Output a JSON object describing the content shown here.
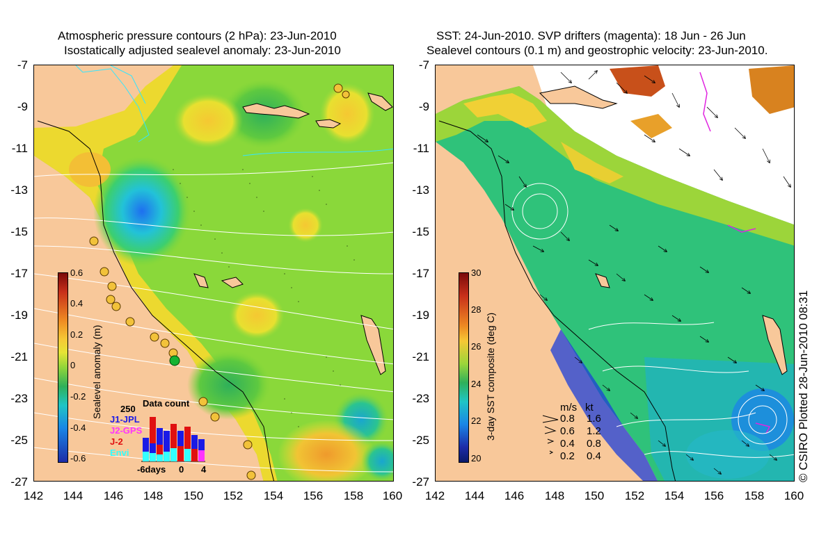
{
  "left_panel": {
    "title_line1": "Atmospheric pressure contours (2 hPa): 23-Jun-2010",
    "title_line2": "Isostatically adjusted sealevel anomaly: 23-Jun-2010",
    "y_ticks": [
      "-7",
      "-9",
      "-11",
      "-13",
      "-15",
      "-17",
      "-19",
      "-21",
      "-23",
      "-25",
      "-27"
    ],
    "x_ticks": [
      "142",
      "144",
      "146",
      "148",
      "150",
      "152",
      "154",
      "156",
      "158",
      "160"
    ],
    "colorbar": {
      "label": "Sealevel anomaly (m)",
      "ticks": [
        "0.6",
        "0.4",
        "0.2",
        "0",
        "-0.2",
        "-0.4",
        "-0.6"
      ]
    },
    "data_count": {
      "title": "Data count",
      "max_label": "250",
      "series": [
        {
          "name": "J1-JPL",
          "color": "#1a1ae6"
        },
        {
          "name": "J2-GPS",
          "color": "#ff33ff"
        },
        {
          "name": "J-2",
          "color": "#e01010"
        },
        {
          "name": "Envi",
          "color": "#33ffff"
        }
      ],
      "axis_labels": [
        "-6days",
        "0",
        "4"
      ]
    }
  },
  "right_panel": {
    "title_line1": "SST: 24-Jun-2010. SVP drifters (magenta): 18 Jun - 26 Jun",
    "title_line2": "Sealevel contours (0.1 m) and geostrophic velocity: 23-Jun-2010.",
    "y_ticks": [
      "-7",
      "-9",
      "-11",
      "-13",
      "-15",
      "-17",
      "-19",
      "-21",
      "-23",
      "-25",
      "-27"
    ],
    "x_ticks": [
      "142",
      "144",
      "146",
      "148",
      "150",
      "152",
      "154",
      "156",
      "158",
      "160"
    ],
    "colorbar": {
      "label": "3-day SST composite (deg C)",
      "ticks": [
        "30",
        "28",
        "26",
        "24",
        "22",
        "20"
      ]
    },
    "velocity_legend": {
      "header_ms": "m/s",
      "header_kt": "kt",
      "rows": [
        {
          "ms": "0.8",
          "kt": "1.6"
        },
        {
          "ms": "0.6",
          "kt": "1.2"
        },
        {
          "ms": "0.4",
          "kt": "0.8"
        },
        {
          "ms": "0.2",
          "kt": "0.4"
        }
      ]
    }
  },
  "credit": "© CSIRO Plotted 28-Jun-2010 08:31"
}
